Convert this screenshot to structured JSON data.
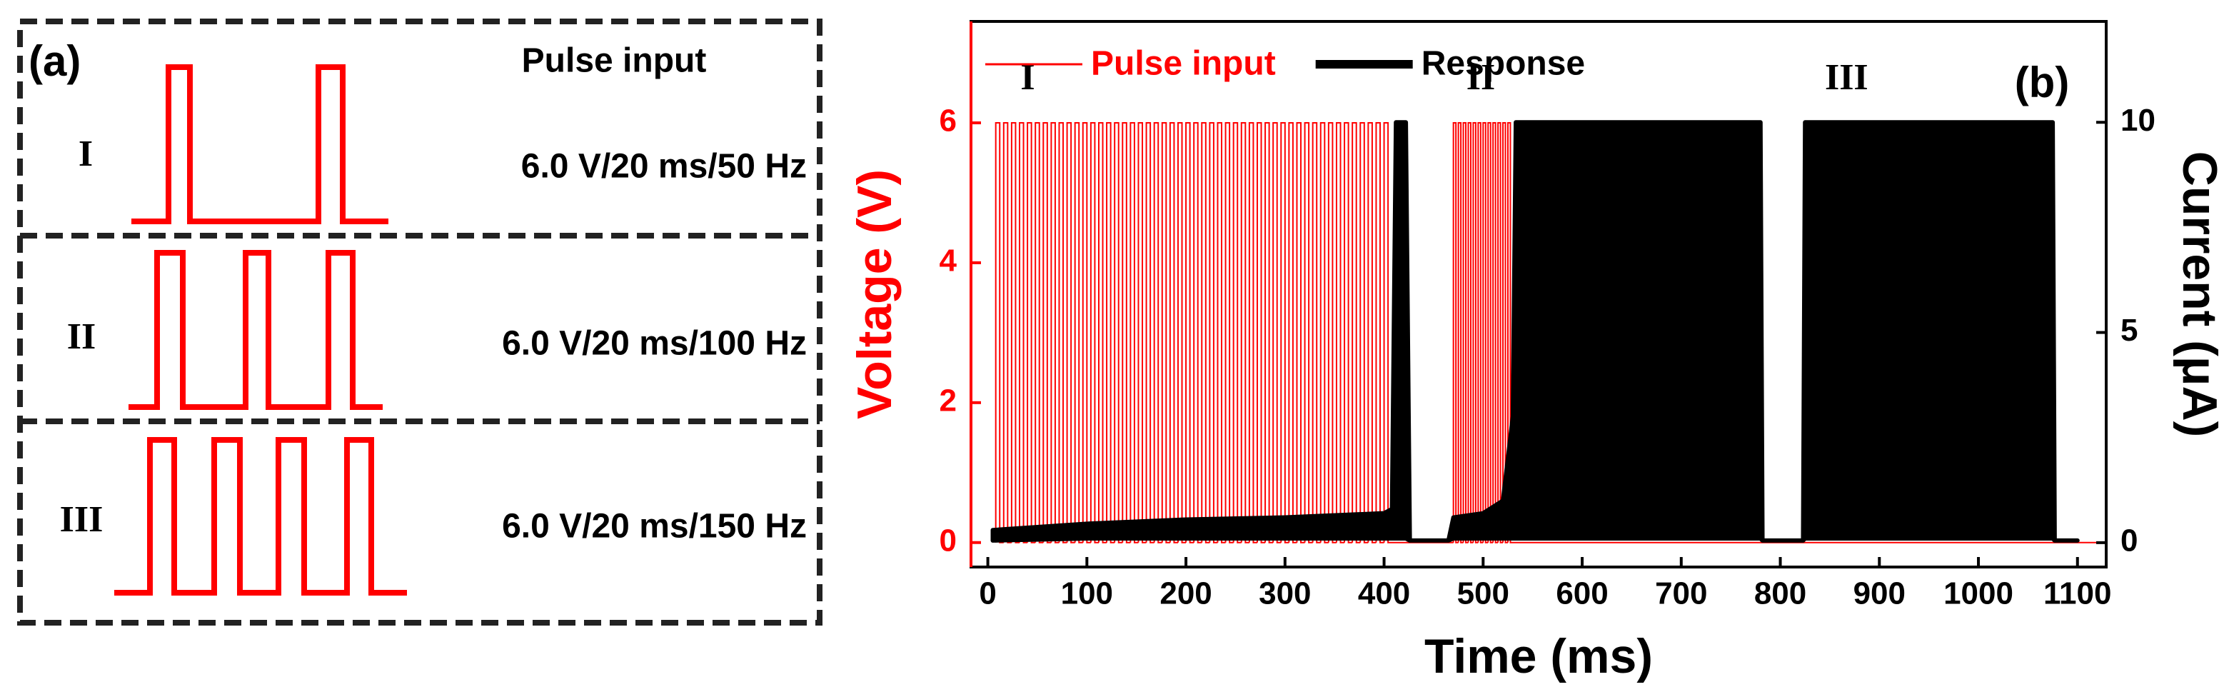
{
  "panel_a": {
    "label": "(a)",
    "header": "Pulse input",
    "rows": [
      {
        "numeral": "I",
        "text": "6.0 V/20 ms/50 Hz"
      },
      {
        "numeral": "II",
        "text": "6.0 V/20 ms/100 Hz"
      },
      {
        "numeral": "III",
        "text": "6.0 V/20 ms/150 Hz"
      }
    ]
  },
  "chart_data": {
    "type": "pulse-response",
    "panel_label": "(b)",
    "x_label": "Time (ms)",
    "y_label": "Voltage (V)",
    "y2_label": "Current (μA)",
    "xlim": [
      -17,
      1129
    ],
    "xticks": [
      0,
      100,
      200,
      300,
      400,
      500,
      600,
      700,
      800,
      900,
      1000,
      1100
    ],
    "ylim": [
      -0.35,
      7.45
    ],
    "yticks": [
      0,
      2,
      4,
      6
    ],
    "y2lim": [
      -0.58,
      12.4
    ],
    "y2ticks": [
      0,
      5,
      10
    ],
    "legend": "top-left",
    "annotations": [
      {
        "text": "I",
        "x": 33,
        "y": 6.6
      },
      {
        "text": "II",
        "x": 483,
        "y": 6.6
      },
      {
        "text": "III",
        "x": 845,
        "y": 6.6
      }
    ],
    "series": [
      {
        "name": "Pulse input",
        "color": "#ff0000",
        "type": "pulse",
        "start": [
          8,
          16,
          24,
          32,
          40,
          48,
          56,
          64,
          72,
          80,
          88,
          96,
          104,
          112,
          120,
          128,
          136,
          144,
          152,
          160,
          168,
          176,
          184,
          192,
          200,
          208,
          216,
          224,
          232,
          240,
          248,
          256,
          264,
          272,
          280,
          288,
          296,
          304,
          312,
          320,
          328,
          336,
          344,
          352,
          360,
          368,
          376,
          384,
          392,
          400,
          470,
          475,
          480,
          485,
          490,
          495,
          500,
          505,
          510,
          515,
          520,
          525
        ],
        "end": [
          12,
          20,
          28,
          36,
          44,
          52,
          60,
          68,
          76,
          84,
          92,
          100,
          108,
          116,
          124,
          132,
          140,
          148,
          156,
          164,
          172,
          180,
          188,
          196,
          204,
          212,
          220,
          228,
          236,
          244,
          252,
          260,
          268,
          276,
          284,
          292,
          300,
          308,
          316,
          324,
          332,
          340,
          348,
          356,
          364,
          372,
          380,
          388,
          396,
          404,
          472.5,
          477.5,
          482.5,
          487.5,
          492.5,
          497.5,
          502.5,
          507.5,
          512.5,
          517.5,
          522.5,
          527.5
        ],
        "values": [
          6,
          6,
          6,
          6,
          6,
          6,
          6,
          6,
          6,
          6,
          6,
          6,
          6,
          6,
          6,
          6,
          6,
          6,
          6,
          6,
          6,
          6,
          6,
          6,
          6,
          6,
          6,
          6,
          6,
          6,
          6,
          6,
          6,
          6,
          6,
          6,
          6,
          6,
          6,
          6,
          6,
          6,
          6,
          6,
          6,
          6,
          6,
          6,
          6,
          6,
          6,
          6,
          6,
          6,
          6,
          6,
          6,
          6,
          6,
          6,
          6,
          6
        ]
      },
      {
        "name": "Response",
        "color": "#000000",
        "type": "band",
        "axis": "y2",
        "x": [
          5,
          100,
          200,
          300,
          400,
          408,
          412,
          422,
          426,
          465,
          470,
          500,
          520,
          530,
          533,
          780,
          782,
          823,
          825,
          1075,
          1077,
          1100
        ],
        "upper": [
          0.3,
          0.45,
          0.55,
          0.6,
          0.7,
          0.8,
          10,
          10,
          0.05,
          0.05,
          0.6,
          0.7,
          1.0,
          3,
          10,
          10,
          0.05,
          0.05,
          10,
          10,
          0.05,
          0.05
        ],
        "lower": [
          0.05,
          0.1,
          0.1,
          0.1,
          0.1,
          0.1,
          0.1,
          0.1,
          0.05,
          0.05,
          0.1,
          0.1,
          0.1,
          0.1,
          0.1,
          0.1,
          0.05,
          0.05,
          0.1,
          0.1,
          0.05,
          0.05
        ]
      }
    ]
  }
}
